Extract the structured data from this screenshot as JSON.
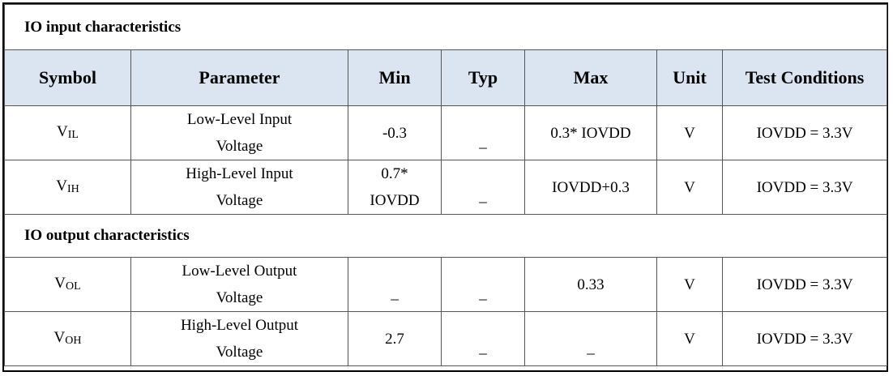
{
  "sections": {
    "input": "IO input characteristics",
    "output": "IO output characteristics"
  },
  "headers": {
    "symbol": "Symbol",
    "parameter": "Parameter",
    "min": "Min",
    "typ": "Typ",
    "max": "Max",
    "unit": "Unit",
    "test": "Test Conditions"
  },
  "rows": [
    {
      "sym_main": "V",
      "sym_sub": "IL",
      "param_1": "Low-Level Input",
      "param_2": "Voltage",
      "min": "-0.3",
      "typ": "_",
      "max": "0.3* IOVDD",
      "unit": "V",
      "test": "IOVDD = 3.3V"
    },
    {
      "sym_main": "V",
      "sym_sub": "IH",
      "param_1": "High-Level Input",
      "param_2": "Voltage",
      "min_1": "0.7*",
      "min_2": "IOVDD",
      "typ": "_",
      "max": "IOVDD+0.3",
      "unit": "V",
      "test": "IOVDD = 3.3V"
    },
    {
      "sym_main": "V",
      "sym_sub": "OL",
      "param_1": "Low-Level Output",
      "param_2": "Voltage",
      "min": "_",
      "typ": "_",
      "max": "0.33",
      "unit": "V",
      "test": "IOVDD = 3.3V"
    },
    {
      "sym_main": "V",
      "sym_sub": "OH",
      "param_1": "High-Level Output",
      "param_2": "Voltage",
      "min": "2.7",
      "typ": "_",
      "max": "_",
      "unit": "V",
      "test": "IOVDD = 3.3V"
    }
  ]
}
